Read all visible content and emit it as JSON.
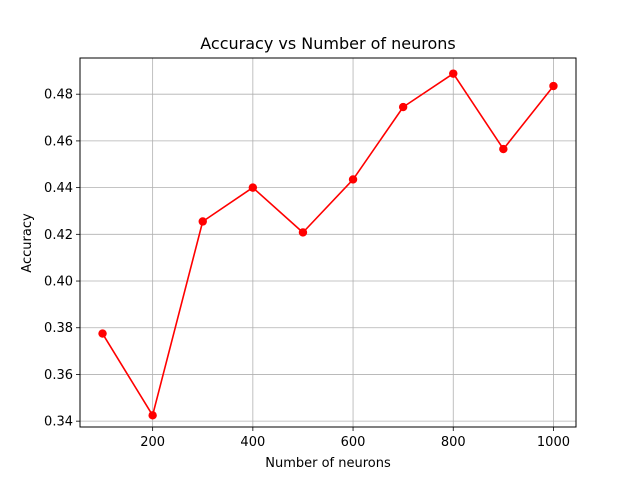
{
  "chart_data": {
    "type": "line",
    "title": "Accuracy vs Number of neurons",
    "xlabel": "Number of neurons",
    "ylabel": "Accuracy",
    "x": [
      100,
      200,
      300,
      400,
      500,
      600,
      700,
      800,
      900,
      1000
    ],
    "series": [
      {
        "values": [
          0.3775,
          0.3425,
          0.4255,
          0.44,
          0.4208,
          0.4435,
          0.4745,
          0.4888,
          0.4565,
          0.4835
        ],
        "color": "#ff0000",
        "marker": "circle"
      }
    ],
    "xlim": [
      55,
      1045
    ],
    "ylim": [
      0.3375,
      0.4955
    ],
    "xticks": [
      200,
      400,
      600,
      800,
      1000
    ],
    "xtick_labels": [
      "200",
      "400",
      "600",
      "800",
      "1000"
    ],
    "yticks": [
      0.34,
      0.36,
      0.38,
      0.4,
      0.42,
      0.44,
      0.46,
      0.48
    ],
    "ytick_labels": [
      "0.34",
      "0.36",
      "0.38",
      "0.40",
      "0.42",
      "0.44",
      "0.46",
      "0.48"
    ],
    "grid": true,
    "grid_color": "#b0b0b0",
    "legend": "none"
  }
}
